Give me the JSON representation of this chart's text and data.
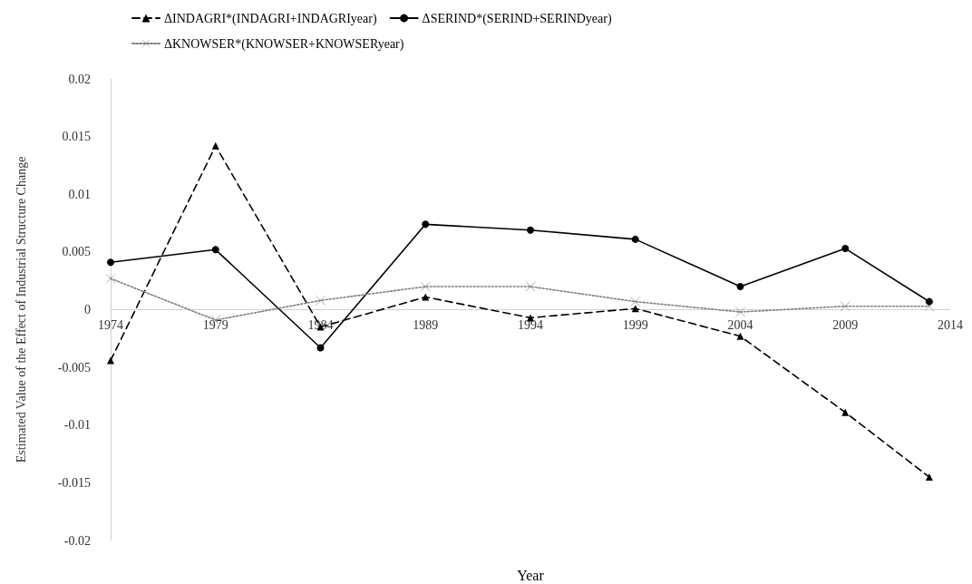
{
  "chart_data": {
    "type": "line",
    "xlabel": "Year",
    "ylabel": "Estimated Value of the Effect of Industrial Structure Change",
    "x": [
      1974,
      1979,
      1984,
      1989,
      1994,
      1999,
      2004,
      2009,
      2013
    ],
    "xlim": [
      1974,
      2014
    ],
    "xticks": [
      1974,
      1979,
      1984,
      1989,
      1994,
      1999,
      2004,
      2009,
      2014
    ],
    "ylim": [
      -0.02,
      0.02
    ],
    "yticks": [
      -0.02,
      -0.015,
      -0.01,
      -0.005,
      0,
      0.005,
      0.01,
      0.015,
      0.02
    ],
    "grid": false,
    "legend": "top",
    "series": [
      {
        "name": "ΔINDAGRI*(INDAGRI+INDAGRIyear)",
        "color": "#000000",
        "marker": "triangle",
        "line_style": "dashed",
        "values": [
          -0.0044,
          0.0142,
          -0.0015,
          0.0011,
          -0.0007,
          0.0001,
          -0.0023,
          -0.0089,
          -0.0145
        ]
      },
      {
        "name": "ΔSERIND*(SERIND+SERINDyear)",
        "color": "#000000",
        "marker": "circle",
        "line_style": "solid",
        "values": [
          0.0041,
          0.0052,
          -0.0033,
          0.0074,
          0.0069,
          0.0061,
          0.002,
          0.0053,
          0.0007
        ]
      },
      {
        "name": "ΔKNOWSER*(KNOWSER+KNOWSERyear)",
        "color": "#808080",
        "marker": "cross",
        "line_style": "dotted",
        "values": [
          0.0027,
          -0.0009,
          0.0008,
          0.002,
          0.002,
          0.0007,
          -0.0002,
          0.0003,
          0.0003
        ]
      }
    ]
  }
}
